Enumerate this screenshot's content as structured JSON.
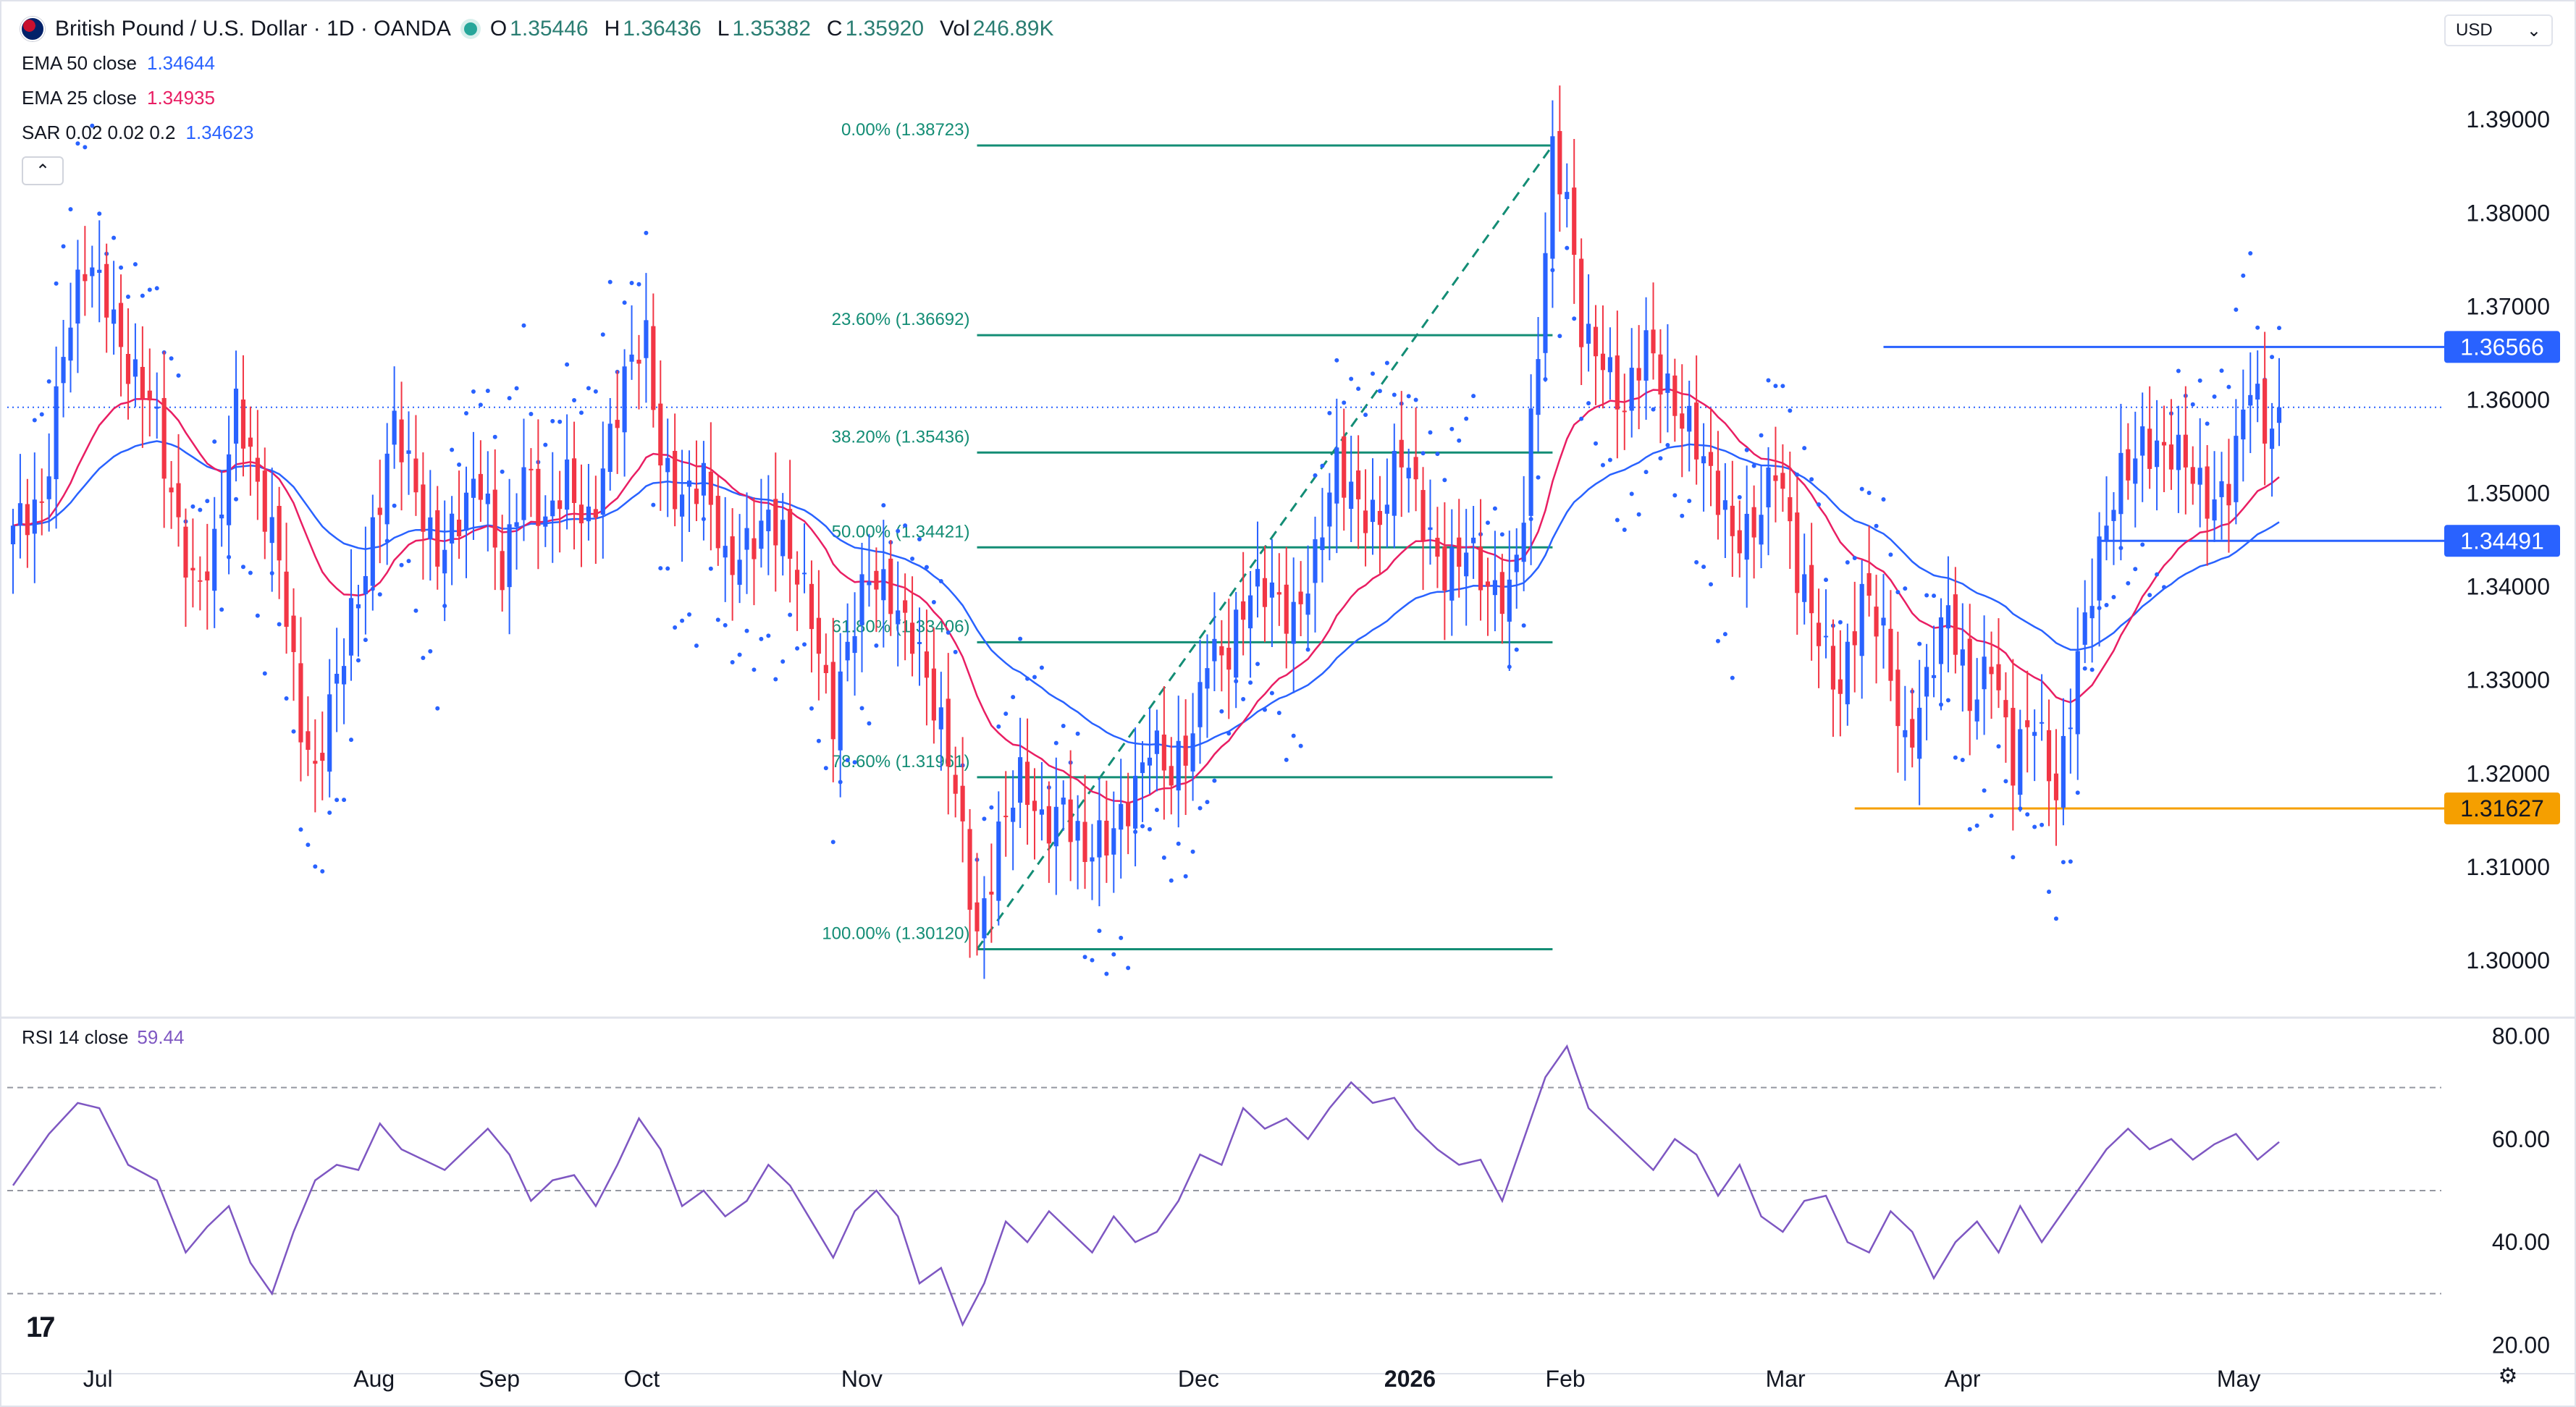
{
  "header": {
    "title": "British Pound / U.S. Dollar · 1D · OANDA",
    "ohlc": [
      {
        "key": "O",
        "value": "1.35446"
      },
      {
        "key": "H",
        "value": "1.36436"
      },
      {
        "key": "L",
        "value": "1.35382"
      },
      {
        "key": "C",
        "value": "1.35920"
      },
      {
        "key": "Vol",
        "value": "246.89K"
      }
    ]
  },
  "currency_select": {
    "label": "USD",
    "icon": "chevron-down-icon"
  },
  "indicators": [
    {
      "label": "EMA 50 close",
      "value": "1.34644",
      "color": "#2962ff"
    },
    {
      "label": "EMA 25 close",
      "value": "1.34935",
      "color": "#e91e63"
    },
    {
      "label": "SAR 0.02 0.02 0.2",
      "value": "1.34623",
      "color": "#2962ff"
    }
  ],
  "collapse_button": {
    "icon": "chevron-up-icon",
    "glyph": "⌃"
  },
  "rsi": {
    "label": "RSI 14 close",
    "value": "59.44"
  },
  "settings_icon": "gear-icon",
  "logo": "TradingView",
  "colors": {
    "up": "#2962ff",
    "down": "#f23645",
    "ema50": "#2962ff",
    "ema25": "#e91e63",
    "sar": "#2962ff",
    "fib": "#138d75",
    "rsi": "#7e57c2",
    "support": "#f59f00",
    "resistance": "#2962ff",
    "grid_text": "#131722"
  },
  "chart_data": [
    {
      "type": "candlestick",
      "symbol": "GBPUSD",
      "timeframe": "1D",
      "ylim": [
        1.2945,
        1.3966
      ],
      "y_ticks": [
        "1.30000",
        "1.31000",
        "1.32000",
        "1.33000",
        "1.34000",
        "1.35000",
        "1.36000",
        "1.37000",
        "1.38000",
        "1.39000"
      ],
      "x_ticks": [
        "Jul",
        "Aug",
        "Sep",
        "Oct",
        "Nov",
        "Dec",
        "2026",
        "Feb",
        "Mar",
        "Apr",
        "May"
      ],
      "price_labels": [
        {
          "value": "1.36566",
          "kind": "resistance"
        },
        {
          "value": "1.34491",
          "kind": "resistance"
        },
        {
          "value": "1.31627",
          "kind": "support"
        }
      ],
      "last_close": 1.3592,
      "fibonacci": [
        {
          "label": "0.00% (1.38723)",
          "price": 1.38723
        },
        {
          "label": "23.60% (1.36692)",
          "price": 1.36692
        },
        {
          "label": "38.20% (1.35436)",
          "price": 1.35436
        },
        {
          "label": "50.00% (1.34421)",
          "price": 1.34421
        },
        {
          "label": "61.80% (1.33406)",
          "price": 1.33406
        },
        {
          "label": "78.60% (1.31961)",
          "price": 1.31961
        },
        {
          "label": "100.00% (1.30120)",
          "price": 1.3012
        }
      ],
      "close_path": [
        [
          0,
          1.345
        ],
        [
          4,
          1.35
        ],
        [
          7,
          1.366
        ],
        [
          10,
          1.373
        ],
        [
          13,
          1.371
        ],
        [
          16,
          1.365
        ],
        [
          19,
          1.36
        ],
        [
          22,
          1.348
        ],
        [
          25,
          1.341
        ],
        [
          28,
          1.345
        ],
        [
          31,
          1.358
        ],
        [
          34,
          1.35
        ],
        [
          37,
          1.345
        ],
        [
          40,
          1.325
        ],
        [
          42,
          1.318
        ],
        [
          44,
          1.326
        ],
        [
          47,
          1.338
        ],
        [
          50,
          1.346
        ],
        [
          53,
          1.356
        ],
        [
          56,
          1.35
        ],
        [
          59,
          1.345
        ],
        [
          62,
          1.347
        ],
        [
          65,
          1.35
        ],
        [
          68,
          1.342
        ],
        [
          71,
          1.354
        ],
        [
          74,
          1.345
        ],
        [
          77,
          1.351
        ],
        [
          80,
          1.348
        ],
        [
          83,
          1.356
        ],
        [
          86,
          1.363
        ],
        [
          88,
          1.366
        ],
        [
          90,
          1.355
        ],
        [
          93,
          1.35
        ],
        [
          96,
          1.35
        ],
        [
          99,
          1.342
        ],
        [
          102,
          1.346
        ],
        [
          105,
          1.347
        ],
        [
          108,
          1.342
        ],
        [
          111,
          1.338
        ],
        [
          114,
          1.327
        ],
        [
          116,
          1.333
        ],
        [
          119,
          1.34
        ],
        [
          122,
          1.34
        ],
        [
          125,
          1.336
        ],
        [
          128,
          1.326
        ],
        [
          131,
          1.318
        ],
        [
          134,
          1.304
        ],
        [
          137,
          1.313
        ],
        [
          140,
          1.318
        ],
        [
          143,
          1.315
        ],
        [
          146,
          1.318
        ],
        [
          149,
          1.31
        ],
        [
          152,
          1.312
        ],
        [
          155,
          1.318
        ],
        [
          158,
          1.324
        ],
        [
          161,
          1.318
        ],
        [
          164,
          1.324
        ],
        [
          166,
          1.335
        ],
        [
          169,
          1.333
        ],
        [
          172,
          1.338
        ],
        [
          175,
          1.34
        ],
        [
          178,
          1.338
        ],
        [
          181,
          1.342
        ],
        [
          184,
          1.352
        ],
        [
          187,
          1.35
        ],
        [
          190,
          1.348
        ],
        [
          193,
          1.353
        ],
        [
          196,
          1.347
        ],
        [
          199,
          1.343
        ],
        [
          202,
          1.344
        ],
        [
          205,
          1.338
        ],
        [
          208,
          1.34
        ],
        [
          210,
          1.35
        ],
        [
          212,
          1.366
        ],
        [
          214,
          1.385
        ],
        [
          216,
          1.38
        ],
        [
          218,
          1.368
        ],
        [
          221,
          1.366
        ],
        [
          224,
          1.358
        ],
        [
          227,
          1.365
        ],
        [
          230,
          1.362
        ],
        [
          233,
          1.358
        ],
        [
          236,
          1.35
        ],
        [
          239,
          1.345
        ],
        [
          242,
          1.348
        ],
        [
          245,
          1.353
        ],
        [
          248,
          1.34
        ],
        [
          251,
          1.336
        ],
        [
          254,
          1.33
        ],
        [
          257,
          1.338
        ],
        [
          260,
          1.334
        ],
        [
          263,
          1.324
        ],
        [
          266,
          1.33
        ],
        [
          269,
          1.336
        ],
        [
          272,
          1.328
        ],
        [
          275,
          1.334
        ],
        [
          278,
          1.32
        ],
        [
          281,
          1.325
        ],
        [
          284,
          1.319
        ],
        [
          287,
          1.333
        ],
        [
          290,
          1.342
        ],
        [
          293,
          1.352
        ],
        [
          296,
          1.357
        ],
        [
          299,
          1.354
        ],
        [
          302,
          1.352
        ],
        [
          305,
          1.35
        ],
        [
          308,
          1.352
        ],
        [
          311,
          1.361
        ],
        [
          313,
          1.355
        ],
        [
          315,
          1.3592
        ]
      ]
    },
    {
      "type": "line",
      "name": "RSI 14 close",
      "ylim": [
        17,
        83
      ],
      "y_ticks": [
        "20.00",
        "40.00",
        "60.00",
        "80.00"
      ],
      "levels": [
        70,
        50,
        30
      ],
      "x": [
        0,
        5,
        9,
        12,
        16,
        20,
        24,
        27,
        30,
        33,
        36,
        39,
        42,
        45,
        48,
        51,
        54,
        57,
        60,
        63,
        66,
        69,
        72,
        75,
        78,
        81,
        84,
        87,
        90,
        93,
        96,
        99,
        102,
        105,
        108,
        111,
        114,
        117,
        120,
        123,
        126,
        129,
        132,
        135,
        138,
        141,
        144,
        147,
        150,
        153,
        156,
        159,
        162,
        165,
        168,
        171,
        174,
        177,
        180,
        183,
        186,
        189,
        192,
        195,
        198,
        201,
        204,
        207,
        210,
        213,
        216,
        219,
        222,
        225,
        228,
        231,
        234,
        237,
        240,
        243,
        246,
        249,
        252,
        255,
        258,
        261,
        264,
        267,
        270,
        273,
        276,
        279,
        282,
        285,
        288,
        291,
        294,
        297,
        300,
        303,
        306,
        309,
        312,
        315
      ],
      "values": [
        51,
        61,
        67,
        66,
        55,
        52,
        38,
        43,
        47,
        36,
        30,
        42,
        52,
        55,
        54,
        63,
        58,
        56,
        54,
        58,
        62,
        57,
        48,
        52,
        53,
        47,
        55,
        64,
        58,
        47,
        50,
        45,
        48,
        55,
        51,
        44,
        37,
        46,
        50,
        45,
        32,
        35,
        24,
        32,
        44,
        40,
        46,
        42,
        38,
        45,
        40,
        42,
        48,
        57,
        55,
        66,
        62,
        64,
        60,
        66,
        71,
        67,
        68,
        62,
        58,
        55,
        56,
        48,
        60,
        72,
        78,
        66,
        62,
        58,
        54,
        60,
        57,
        49,
        55,
        45,
        42,
        48,
        49,
        40,
        38,
        46,
        42,
        33,
        40,
        44,
        38,
        47,
        40,
        46,
        52,
        58,
        62,
        58,
        60,
        56,
        59,
        61,
        56,
        59.44
      ]
    }
  ]
}
